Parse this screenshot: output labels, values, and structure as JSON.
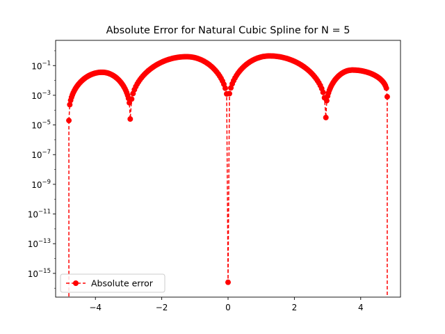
{
  "chart_data": {
    "type": "line",
    "title": "Absolute Error for Natural Cubic Spline for N = 5",
    "xlabel": "",
    "ylabel": "",
    "xlim": [
      -5.2,
      5.2
    ],
    "ylog": true,
    "ylim_exp": [
      -16.6,
      0.7
    ],
    "x_ticks": [
      -4,
      -2,
      0,
      2,
      4
    ],
    "x_tick_labels": [
      "−4",
      "−2",
      "0",
      "2",
      "4"
    ],
    "y_ticks_exp": [
      -15,
      -13,
      -11,
      -9,
      -7,
      -5,
      -3,
      -1
    ],
    "y_tick_labels": [
      {
        "base": "10",
        "exp": "−15"
      },
      {
        "base": "10",
        "exp": "−13"
      },
      {
        "base": "10",
        "exp": "−11"
      },
      {
        "base": "10",
        "exp": "−9"
      },
      {
        "base": "10",
        "exp": "−7"
      },
      {
        "base": "10",
        "exp": "−5"
      },
      {
        "base": "10",
        "exp": "−3"
      },
      {
        "base": "10",
        "exp": "−1"
      }
    ],
    "grid": false,
    "legend_position": "lower-left",
    "series": [
      {
        "name": "Absolute error",
        "color": "#ff0000",
        "linestyle": "dashed",
        "marker": "circle",
        "knots": [
          -4.8,
          -2.95,
          0.0,
          2.95,
          4.8
        ],
        "peaks": [
          {
            "x": -3.8,
            "log10_y": -1.45
          },
          {
            "x": -1.25,
            "log10_y": -0.4
          },
          {
            "x": 1.25,
            "log10_y": -0.35
          },
          {
            "x": 3.75,
            "log10_y": -1.3
          }
        ],
        "dips": [
          {
            "x": -4.8,
            "log10_y": -4.7
          },
          {
            "x": -2.95,
            "log10_y": -4.6
          },
          {
            "x": 0.0,
            "log10_y": -15.6
          },
          {
            "x": 2.95,
            "log10_y": -4.5
          },
          {
            "x": 4.8,
            "log10_y": -3.1
          }
        ]
      }
    ]
  }
}
